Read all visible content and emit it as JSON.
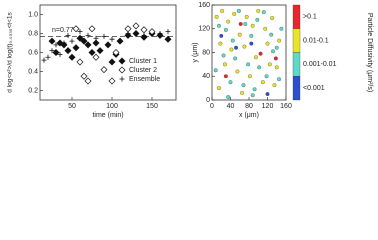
{
  "chart_data": [
    {
      "type": "scatter",
      "y_label": "d log<x²>/d log(t)₀.₀₃₃₅<t<1s",
      "x_label": "time (min)",
      "xlim": [
        10,
        180
      ],
      "xticks": [
        50,
        100,
        150
      ],
      "ylim": [
        0.1,
        1.1
      ],
      "yticks": [
        0.2,
        0.4,
        0.6,
        0.8,
        {
          "value": 1,
          "label": "1.0"
        }
      ],
      "reference_line": {
        "value": 0.77,
        "label": "n=0.77"
      },
      "series": [
        {
          "name": "Cluster 1",
          "color": "#111111",
          "marker": "diamond-filled",
          "x": [
            25,
            30,
            35,
            40,
            45,
            50,
            55,
            60,
            65,
            70,
            75,
            80,
            85,
            95,
            100,
            105,
            110,
            120,
            130,
            140,
            150,
            160,
            170
          ],
          "values": [
            0.72,
            0.6,
            0.7,
            0.68,
            0.62,
            0.55,
            0.65,
            0.75,
            0.72,
            0.68,
            0.6,
            0.7,
            0.62,
            0.68,
            0.5,
            0.58,
            0.72,
            0.78,
            0.8,
            0.76,
            0.8,
            0.78,
            0.74
          ]
        },
        {
          "name": "Cluster 2",
          "color": "#111111",
          "marker": "diamond-open",
          "x": [
            55,
            60,
            65,
            70,
            75,
            80,
            90,
            100,
            105,
            120,
            130,
            140,
            150
          ],
          "values": [
            0.85,
            0.5,
            0.35,
            0.3,
            0.85,
            0.55,
            0.42,
            0.3,
            0.6,
            0.85,
            0.88,
            0.84,
            0.82
          ]
        },
        {
          "name": "Ensemble",
          "color": "#111111",
          "marker": "plus",
          "x": [
            15,
            20,
            25,
            30,
            35,
            40,
            45,
            50,
            60,
            70,
            80,
            90,
            100,
            120,
            140,
            160,
            170
          ],
          "values": [
            0.52,
            0.55,
            0.62,
            0.68,
            0.58,
            0.7,
            0.78,
            0.72,
            0.82,
            0.78,
            0.75,
            0.77,
            0.74,
            0.8,
            0.78,
            0.8,
            0.82
          ]
        }
      ]
    },
    {
      "type": "scatter",
      "y_label": "y (μm)",
      "x_label": "x (μm)",
      "colorbar_label": "Particle Diffusivity (μm²/s)",
      "xlim": [
        0,
        160
      ],
      "xticks": [
        0,
        40,
        80,
        120,
        160
      ],
      "ylim": [
        0,
        160
      ],
      "yticks": [
        0,
        40,
        80,
        120,
        160
      ],
      "series": [
        {
          "name": ">0.1",
          "color": "#e8262b",
          "marker": "dot",
          "x": [
            62,
            105,
            138,
            30
          ],
          "values": [
            128,
            78,
            70,
            40
          ]
        },
        {
          "name": "0.01-0.1",
          "color": "#e9e32a",
          "marker": "dot",
          "x": [
            10,
            22,
            35,
            48,
            60,
            75,
            88,
            100,
            115,
            130,
            145,
            18,
            42,
            70,
            95,
            120,
            140,
            28,
            55,
            82,
            110,
            135,
            15,
            65,
            125
          ],
          "values": [
            140,
            150,
            132,
            145,
            110,
            140,
            125,
            150,
            120,
            138,
            100,
            95,
            85,
            90,
            72,
            95,
            55,
            60,
            48,
            40,
            30,
            25,
            20,
            12,
            60
          ]
        },
        {
          "name": "0.001-0.01",
          "color": "#5fd9c8",
          "marker": "dot",
          "x": [
            15,
            30,
            45,
            58,
            72,
            85,
            98,
            112,
            128,
            150,
            25,
            50,
            78,
            102,
            132,
            8,
            40,
            68,
            92,
            118,
            145,
            35,
            88,
            140
          ],
          "values": [
            125,
            118,
            100,
            150,
            128,
            108,
            135,
            148,
            110,
            120,
            75,
            70,
            60,
            55,
            82,
            50,
            30,
            25,
            18,
            40,
            35,
            5,
            8,
            88
          ]
        },
        {
          "name": "<0.001",
          "color": "#2b4fd1",
          "marker": "dot",
          "x": [
            52,
            120,
            20,
            85
          ],
          "values": [
            88,
            10,
            108,
            95
          ]
        }
      ]
    }
  ]
}
